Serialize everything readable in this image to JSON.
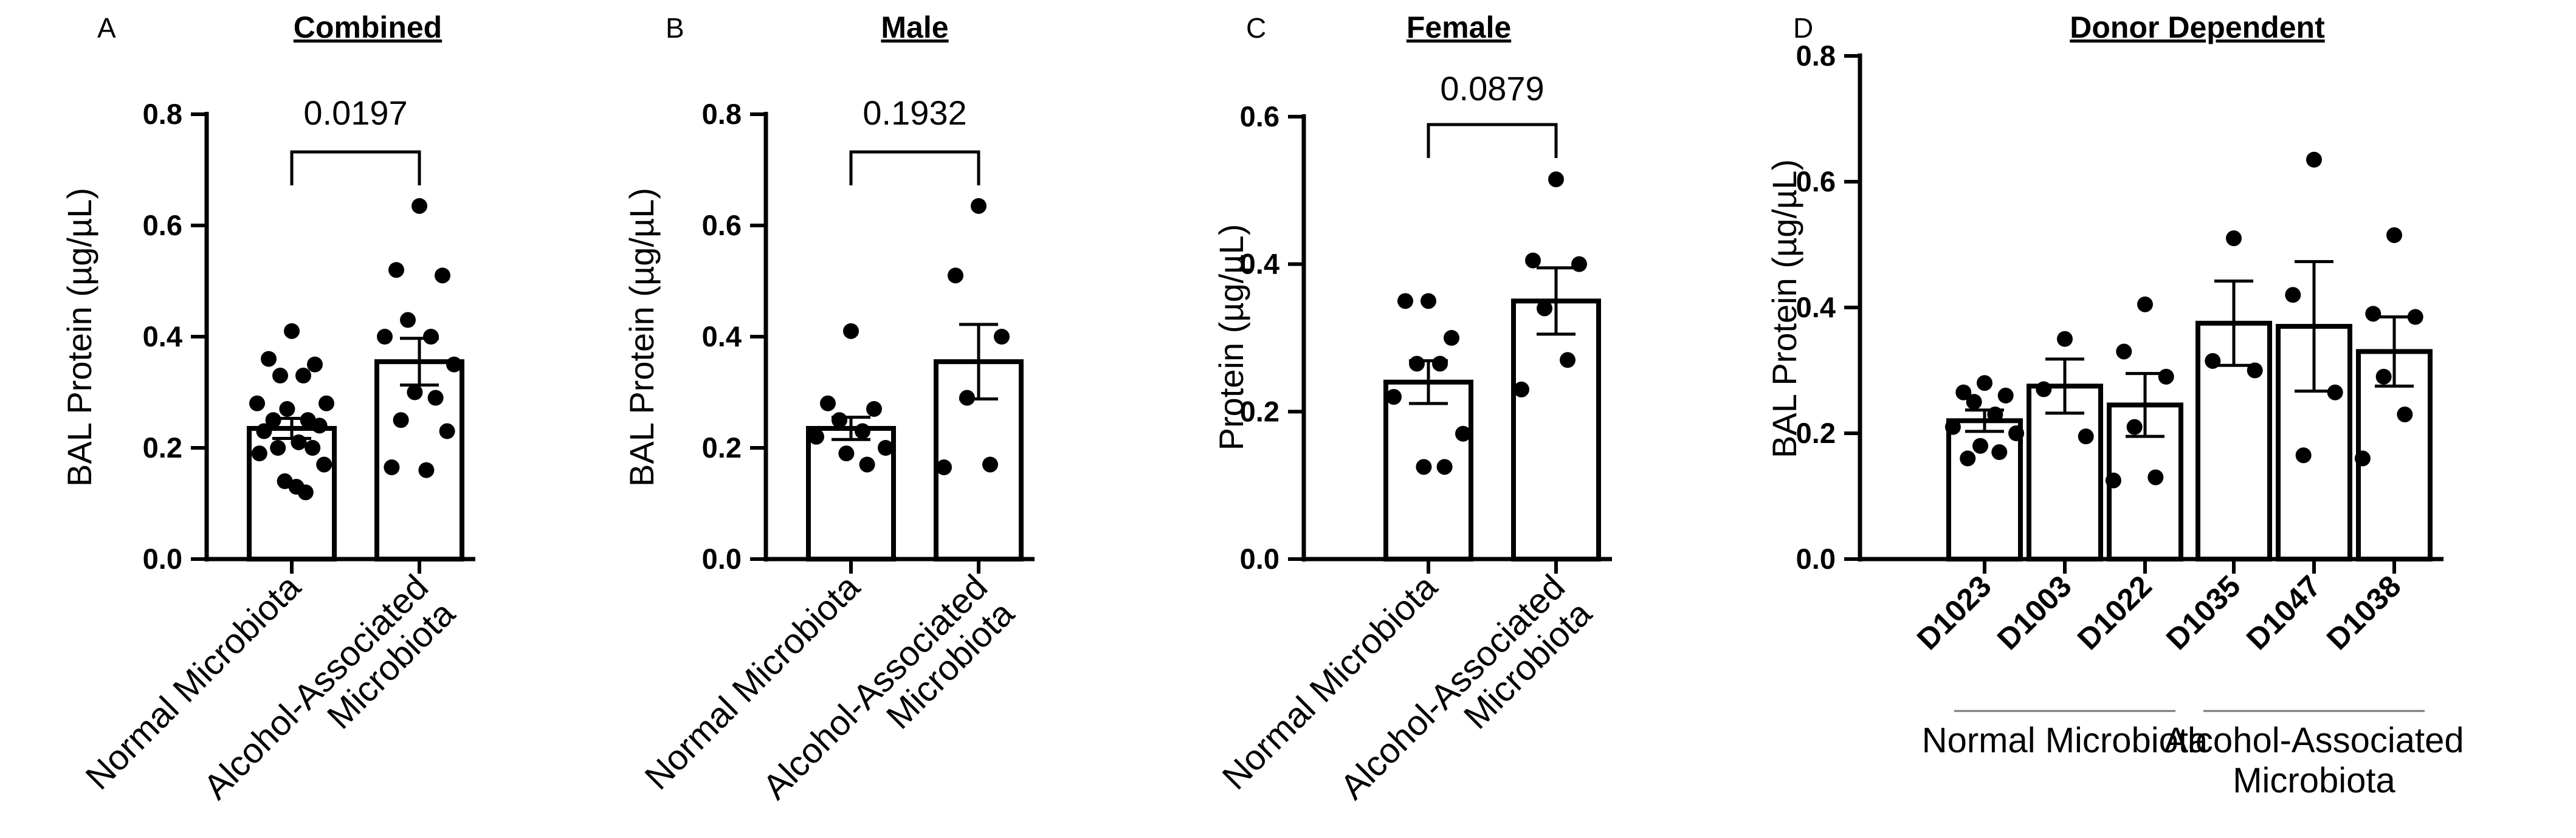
{
  "chart_data": [
    {
      "type": "bar",
      "panel": "A",
      "title": "Combined",
      "ylabel": "BAL Protein (µg/µL)",
      "ylim": [
        0,
        0.8
      ],
      "yticks": [
        "0.0",
        "0.2",
        "0.4",
        "0.6",
        "0.8"
      ],
      "categories": [
        "Normal Microbiota",
        "Alcohol-Associated Microbiota"
      ],
      "category_lines": [
        [
          "Normal Microbiota"
        ],
        [
          "Alcohol-Associated",
          "Microbiota"
        ]
      ],
      "values": [
        0.235,
        0.355
      ],
      "sem": [
        0.018,
        0.042
      ],
      "points": [
        [
          0.41,
          0.36,
          0.35,
          0.33,
          0.33,
          0.28,
          0.28,
          0.27,
          0.25,
          0.25,
          0.24,
          0.23,
          0.21,
          0.2,
          0.2,
          0.19,
          0.17,
          0.14,
          0.13,
          0.12
        ],
        [
          0.635,
          0.52,
          0.51,
          0.43,
          0.4,
          0.4,
          0.35,
          0.3,
          0.29,
          0.25,
          0.23,
          0.165,
          0.16
        ]
      ],
      "comparison": {
        "label": "0.0197",
        "between": [
          0,
          1
        ]
      }
    },
    {
      "type": "bar",
      "panel": "B",
      "title": "Male",
      "ylabel": "BAL Protein (µg/µL)",
      "ylim": [
        0,
        0.8
      ],
      "yticks": [
        "0.0",
        "0.2",
        "0.4",
        "0.6",
        "0.8"
      ],
      "categories": [
        "Normal Microbiota",
        "Alcohol-Associated Microbiota"
      ],
      "category_lines": [
        [
          "Normal Microbiota"
        ],
        [
          "Alcohol-Associated",
          "Microbiota"
        ]
      ],
      "values": [
        0.235,
        0.355
      ],
      "sem": [
        0.02,
        0.067
      ],
      "points": [
        [
          0.41,
          0.28,
          0.27,
          0.25,
          0.23,
          0.22,
          0.2,
          0.19,
          0.17
        ],
        [
          0.635,
          0.51,
          0.4,
          0.29,
          0.17,
          0.165
        ]
      ],
      "comparison": {
        "label": "0.1932",
        "between": [
          0,
          1
        ]
      }
    },
    {
      "type": "bar",
      "panel": "C",
      "title": "Female",
      "ylabel": "Protein (µg/µL)",
      "ylim": [
        0,
        0.6
      ],
      "yticks": [
        "0.0",
        "0.2",
        "0.4",
        "0.6"
      ],
      "categories": [
        "Normal Microbiota",
        "Alcohol-Associated Microbiota"
      ],
      "category_lines": [
        [
          "Normal Microbiota"
        ],
        [
          "Alcohol-Associated",
          "Microbiota"
        ]
      ],
      "values": [
        0.24,
        0.35
      ],
      "sem": [
        0.029,
        0.045
      ],
      "points": [
        [
          0.35,
          0.35,
          0.3,
          0.265,
          0.265,
          0.22,
          0.17,
          0.125,
          0.125
        ],
        [
          0.515,
          0.405,
          0.4,
          0.34,
          0.27,
          0.23
        ]
      ],
      "comparison": {
        "label": "0.0879",
        "between": [
          0,
          1
        ]
      }
    },
    {
      "type": "bar",
      "panel": "D",
      "title": "Donor Dependent",
      "ylabel": "BAL Protein (µg/µL)",
      "ylim": [
        0,
        0.8
      ],
      "yticks": [
        "0.0",
        "0.2",
        "0.4",
        "0.6",
        "0.8"
      ],
      "categories": [
        "D1023",
        "D1003",
        "D1022",
        "D1035",
        "D1047",
        "D1038"
      ],
      "values": [
        0.22,
        0.275,
        0.245,
        0.375,
        0.37,
        0.33
      ],
      "sem": [
        0.017,
        0.043,
        0.05,
        0.067,
        0.103,
        0.055
      ],
      "points": [
        [
          0.28,
          0.265,
          0.26,
          0.25,
          0.23,
          0.21,
          0.2,
          0.18,
          0.17,
          0.16
        ],
        [
          0.35,
          0.27,
          0.195
        ],
        [
          0.405,
          0.33,
          0.29,
          0.21,
          0.13,
          0.125
        ],
        [
          0.51,
          0.315,
          0.3
        ],
        [
          0.635,
          0.42,
          0.265,
          0.165
        ],
        [
          0.515,
          0.39,
          0.385,
          0.29,
          0.23,
          0.16
        ]
      ],
      "groups": [
        {
          "label_lines": [
            "Normal Microbiota"
          ],
          "span": [
            0,
            2
          ]
        },
        {
          "label_lines": [
            "Alcohol-Associated",
            "Microbiota"
          ],
          "span": [
            3,
            5
          ]
        }
      ]
    }
  ]
}
